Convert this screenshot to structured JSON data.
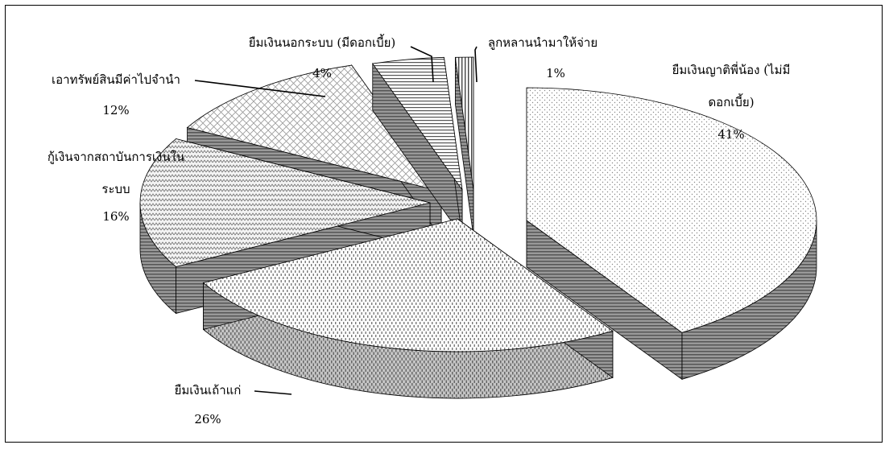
{
  "chart_data": {
    "type": "pie",
    "title": "",
    "slices": [
      {
        "label": "ยืมเงินญาติพี่น้อง (ไม่มีดอกเบี้ย)",
        "lines": [
          "ยืมเงินญาติพี่น้อง (ไม่มี",
          "ดอกเบี้ย)"
        ],
        "value": 41,
        "value_label": "41%"
      },
      {
        "label": "ยืมเงินเถ้าแก่",
        "lines": [
          "ยืมเงินเถ้าแก่"
        ],
        "value": 26,
        "value_label": "26%"
      },
      {
        "label": "กู้เงินจากสถาบันการเงินในระบบ",
        "lines": [
          "กู้เงินจากสถาบันการเงินใน",
          "ระบบ"
        ],
        "value": 16,
        "value_label": "16%"
      },
      {
        "label": "เอาทรัพย์สินมีค่าไปจำนำ",
        "lines": [
          "เอาทรัพย์สินมีค่าไปจำนำ"
        ],
        "value": 12,
        "value_label": "12%"
      },
      {
        "label": "ยืมเงินนอกระบบ (มีดอกเบี้ย)",
        "lines": [
          "ยืมเงินนอกระบบ (มีดอกเบี้ย)"
        ],
        "value": 4,
        "value_label": "4%"
      },
      {
        "label": "ลูกหลานนำมาให้จ่าย",
        "lines": [
          "ลูกหลานนำมาให้จ่าย"
        ],
        "value": 1,
        "value_label": "1%"
      }
    ],
    "exploded": true,
    "three_d": true,
    "legend": "none"
  }
}
